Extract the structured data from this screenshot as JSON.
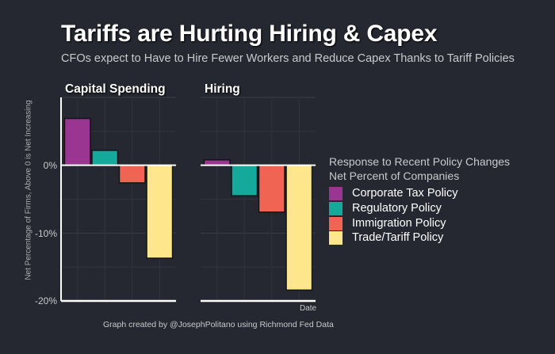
{
  "chart_data": {
    "type": "bar",
    "title": "Tariffs are Hurting Hiring & Capex",
    "subtitle": "CFOs expect to Have to Hire Fewer Workers and Reduce Capex Thanks to Tariff Policies",
    "ylabel": "Net Percentage of Firms, Above 0 is Net Increasing",
    "xlabel": "Date",
    "ylim": [
      -20,
      10
    ],
    "yticks": [
      0,
      -10,
      -20
    ],
    "ytick_labels": [
      "0%",
      "-10%",
      "-20%"
    ],
    "grid": true,
    "legend": {
      "title_line1": "Response to Recent Policy Changes",
      "title_line2": "Net Percent of Companies",
      "placement": "right"
    },
    "categories": [
      "Corporate Tax Policy",
      "Regulatory Policy",
      "Immigration Policy",
      "Trade/Tariff Policy"
    ],
    "colors": [
      "#9b3592",
      "#14a99a",
      "#f06454",
      "#fde68c"
    ],
    "facets": [
      {
        "name": "Capital Spending",
        "values": [
          6.9,
          2.2,
          -2.6,
          -13.7
        ]
      },
      {
        "name": "Hiring",
        "values": [
          0.8,
          -4.5,
          -6.9,
          -18.4
        ]
      }
    ]
  },
  "caption": "Graph created by @JosephPolitano using Richmond Fed Data"
}
